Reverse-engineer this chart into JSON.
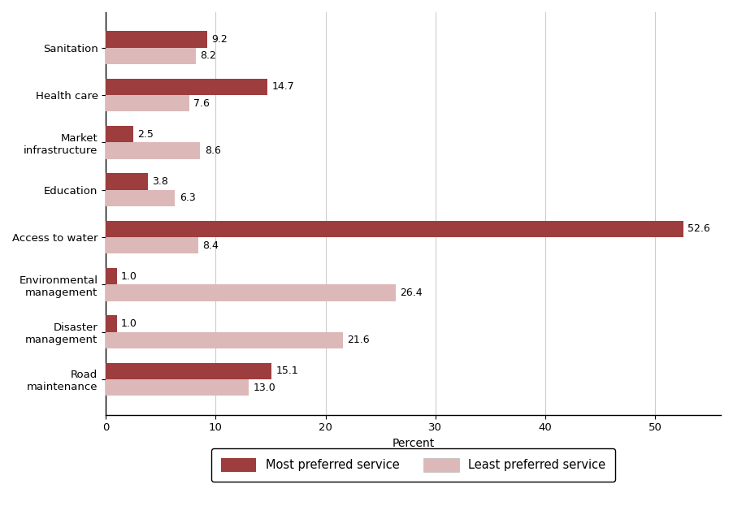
{
  "categories": [
    "Road\nmaintenance",
    "Disaster\nmanagement",
    "Environmental\nmanagement",
    "Access to water",
    "Education",
    "Market\ninfrastructure",
    "Health care",
    "Sanitation"
  ],
  "most_preferred": [
    15.1,
    1.0,
    1.0,
    52.6,
    3.8,
    2.5,
    14.7,
    9.2
  ],
  "least_preferred": [
    13.0,
    21.6,
    26.4,
    8.4,
    6.3,
    8.6,
    7.6,
    8.2
  ],
  "most_color": "#9e3d3d",
  "least_color": "#ddb8b8",
  "xlabel": "Percent",
  "xlim": [
    0,
    56
  ],
  "xticks": [
    0,
    10,
    20,
    30,
    40,
    50
  ],
  "legend_most": "Most preferred service",
  "legend_least": "Least preferred service",
  "bar_height": 0.35,
  "figsize": [
    9.02,
    6.55
  ],
  "dpi": 100,
  "grid_color": "#cccccc",
  "label_fontsize": 9,
  "tick_fontsize": 9.5,
  "xlabel_fontsize": 10
}
